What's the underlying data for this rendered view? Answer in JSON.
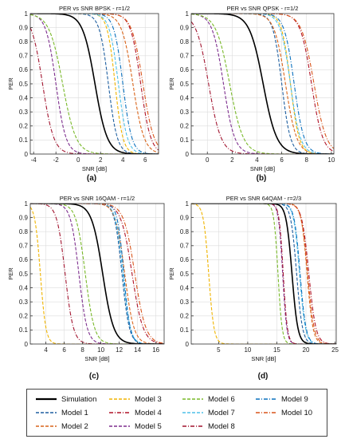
{
  "chart_data": [
    {
      "type": "line",
      "title": "PER vs SNR   BPSK - r=1/2",
      "xlabel": "SNR [dB]",
      "ylabel": "PER",
      "caption": "(a)",
      "xlim": [
        -4.3,
        7.2
      ],
      "ylim": [
        0,
        1
      ],
      "xticks": [
        -4,
        -2,
        0,
        2,
        4,
        6
      ],
      "yticks": [
        0,
        0.1,
        0.2,
        0.3,
        0.4,
        0.5,
        0.6,
        0.7,
        0.8,
        0.9,
        1
      ],
      "grid": true,
      "curves": {
        "sim": [
          1.5,
          0.55
        ],
        "m1": [
          2.7,
          0.4
        ],
        "m2": [
          4.9,
          0.5
        ],
        "m3": [
          3.3,
          0.35
        ],
        "m4": [
          5.6,
          0.45
        ],
        "m5": [
          -2.0,
          0.45
        ],
        "m6": [
          -1.4,
          0.6
        ],
        "m7": [
          3.6,
          0.4
        ],
        "m8": [
          -3.2,
          0.5
        ],
        "m9": [
          4.0,
          0.4
        ],
        "m10": [
          5.8,
          0.5
        ]
      }
    },
    {
      "type": "line",
      "title": "PER vs SNR   QPSK - r=1/2",
      "xlabel": "SNR [dB]",
      "ylabel": "PER",
      "caption": "(b)",
      "xlim": [
        -1.3,
        10.2
      ],
      "ylim": [
        0,
        1
      ],
      "xticks": [
        0,
        2,
        4,
        6,
        8,
        10
      ],
      "yticks": [
        0,
        0.1,
        0.2,
        0.3,
        0.4,
        0.5,
        0.6,
        0.7,
        0.8,
        0.9,
        1
      ],
      "grid": true,
      "curves": {
        "sim": [
          4.5,
          0.55
        ],
        "m1": [
          6.0,
          0.35
        ],
        "m2": [
          6.3,
          0.45
        ],
        "m3": [
          6.7,
          0.35
        ],
        "m4": [
          8.4,
          0.45
        ],
        "m5": [
          1.3,
          0.45
        ],
        "m6": [
          1.8,
          0.55
        ],
        "m7": [
          6.7,
          0.4
        ],
        "m8": [
          0.1,
          0.5
        ],
        "m9": [
          7.0,
          0.4
        ],
        "m10": [
          8.6,
          0.5
        ]
      }
    },
    {
      "type": "line",
      "title": "PER vs SNR   16QAM - r=1/2",
      "xlabel": "SNR [dB]",
      "ylabel": "PER",
      "caption": "(c)",
      "xlim": [
        2.3,
        16.9
      ],
      "ylim": [
        0,
        1
      ],
      "xticks": [
        4,
        6,
        8,
        10,
        12,
        14,
        16
      ],
      "yticks": [
        0,
        0.1,
        0.2,
        0.3,
        0.4,
        0.5,
        0.6,
        0.7,
        0.8,
        0.9,
        1
      ],
      "grid": true,
      "curves": {
        "sim": [
          10.2,
          0.6
        ],
        "m1": [
          12.3,
          0.4
        ],
        "m2": [
          12.6,
          0.5
        ],
        "m3": [
          3.4,
          0.3
        ],
        "m4": [
          13.4,
          0.6
        ],
        "m5": [
          7.6,
          0.45
        ],
        "m6": [
          8.3,
          0.5
        ],
        "m7": [
          12.4,
          0.4
        ],
        "m8": [
          6.1,
          0.45
        ],
        "m9": [
          12.5,
          0.35
        ],
        "m10": [
          13.7,
          0.6
        ]
      }
    },
    {
      "type": "line",
      "title": "PER vs SNR   64QAM - r=2/3",
      "xlabel": "SNR [dB]",
      "ylabel": "PER",
      "caption": "(d)",
      "xlim": [
        0.3,
        25.2
      ],
      "ylim": [
        0,
        1
      ],
      "xticks": [
        5,
        10,
        15,
        20,
        25
      ],
      "yticks": [
        0,
        0.1,
        0.2,
        0.3,
        0.4,
        0.5,
        0.6,
        0.7,
        0.8,
        0.9,
        1
      ],
      "grid": true,
      "curves": {
        "sim": [
          17.6,
          0.5
        ],
        "m1": [
          18.4,
          0.5
        ],
        "m2": [
          20.2,
          0.5
        ],
        "m3": [
          3.3,
          0.45
        ],
        "m4": [
          20.5,
          0.6
        ],
        "m5": [
          16.0,
          0.35
        ],
        "m6": [
          15.2,
          0.35
        ],
        "m7": [
          18.9,
          0.5
        ],
        "m8": [
          16.1,
          0.35
        ],
        "m9": [
          19.0,
          0.5
        ],
        "m10": [
          20.3,
          0.55
        ]
      }
    }
  ],
  "legend": {
    "items": [
      {
        "key": "sim",
        "label": "Simulation",
        "color": "#000000",
        "dash": "solid"
      },
      {
        "key": "m3",
        "label": "Model  3",
        "color": "#f0b400",
        "dash": "dash"
      },
      {
        "key": "m6",
        "label": "Model  6",
        "color": "#78b828",
        "dash": "dash"
      },
      {
        "key": "m9",
        "label": "Model  9",
        "color": "#0a70bd",
        "dash": "dashdot"
      },
      {
        "key": "m1",
        "label": "Model  1",
        "color": "#1f5fa0",
        "dash": "dash"
      },
      {
        "key": "m4",
        "label": "Model  4",
        "color": "#b01226",
        "dash": "dashdot"
      },
      {
        "key": "m7",
        "label": "Model  7",
        "color": "#4ec0e8",
        "dash": "dash"
      },
      {
        "key": "m10",
        "label": "Model 10",
        "color": "#d9541a",
        "dash": "dashdot"
      },
      {
        "key": "m2",
        "label": "Model  2",
        "color": "#d9641a",
        "dash": "dash"
      },
      {
        "key": "m5",
        "label": "Model  5",
        "color": "#7e2f8e",
        "dash": "dash"
      },
      {
        "key": "m8",
        "label": "Model  8",
        "color": "#a2142f",
        "dash": "dashdot"
      }
    ]
  }
}
